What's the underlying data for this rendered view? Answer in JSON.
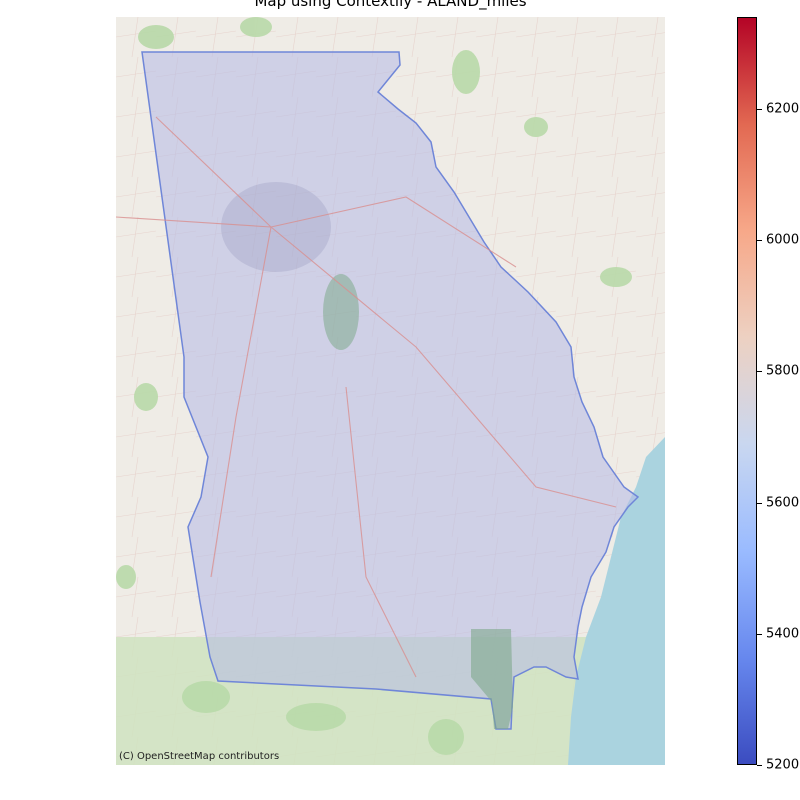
{
  "title": "Map using Contextily - ALAND_miles",
  "attribution": "(C) OpenStreetMap contributors",
  "basemap": {
    "land_color": "#efece6",
    "forest_color": "#b3d9a3",
    "water_color": "#aad3df",
    "road_color": "#e8b9b0",
    "highway_color": "#d98f8f"
  },
  "region": {
    "fill_color": "#b4b9e6",
    "stroke_color": "#6f86d8"
  },
  "colorbar": {
    "label": "",
    "min": 5200,
    "max": 6340,
    "colormap": "coolwarm",
    "stops": [
      "#3b4cc0",
      "#6788ee",
      "#9abbff",
      "#c9d7f0",
      "#edd1c2",
      "#f7a889",
      "#e26952",
      "#b40426"
    ],
    "ticks": [
      {
        "value": 5200,
        "label": "5200"
      },
      {
        "value": 5400,
        "label": "5400"
      },
      {
        "value": 5600,
        "label": "5600"
      },
      {
        "value": 5800,
        "label": "5800"
      },
      {
        "value": 6000,
        "label": "6000"
      },
      {
        "value": 6200,
        "label": "6200"
      }
    ]
  }
}
